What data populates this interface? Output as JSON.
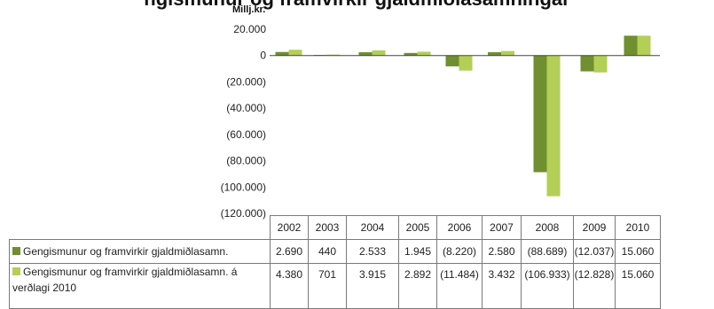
{
  "chart_data": {
    "type": "bar",
    "title": "ngismunur og framvirkir gjaldmiðlasamningar",
    "ylabel": "Millj.kr.",
    "ylim": [
      -120000,
      20000
    ],
    "yticks": [
      20000,
      0,
      -20000,
      -40000,
      -60000,
      -80000,
      -100000,
      -120000
    ],
    "ytick_labels": [
      "20.000",
      "0",
      "(20.000)",
      "(40.000)",
      "(60.000)",
      "(80.000)",
      "(100.000)",
      "(120.000)"
    ],
    "grid": false,
    "legend": "data-table below chart",
    "categories": [
      "2002",
      "2003",
      "2004",
      "2005",
      "2006",
      "2007",
      "2008",
      "2009",
      "2010"
    ],
    "series": [
      {
        "name": "Gengismunur og framvirkir gjaldmiðlasamn.",
        "color": "#6f8f30",
        "values": [
          2690,
          440,
          2533,
          1945,
          -8220,
          2580,
          -88689,
          -12037,
          15060
        ],
        "labels": [
          "2.690",
          "440",
          "2.533",
          "1.945",
          "(8.220)",
          "2.580",
          "(88.689)",
          "(12.037)",
          "15.060"
        ]
      },
      {
        "name": "Gengismunur og framvirkir gjaldmiðlasamn. á verðlagi 2010",
        "color": "#b3cf55",
        "values": [
          4380,
          701,
          3915,
          2892,
          -11484,
          3432,
          -106933,
          -12828,
          15060
        ],
        "labels": [
          "4.380",
          "701",
          "3.915",
          "2.892",
          "(11.484)",
          "3.432",
          "(106.933)",
          "(12.828)",
          "15.060"
        ]
      }
    ]
  }
}
